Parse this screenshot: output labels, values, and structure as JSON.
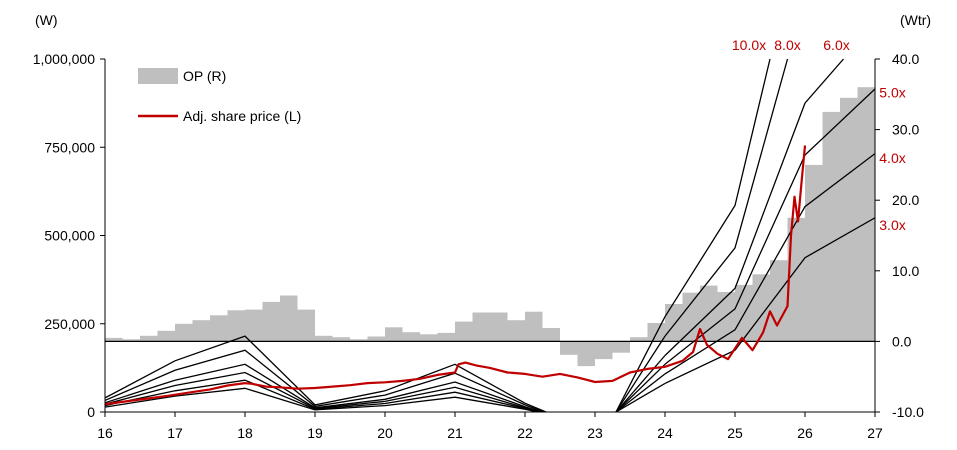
{
  "chart_data": {
    "type": "line",
    "left_unit": "(W)",
    "right_unit": "(Wtr)",
    "x_ticks": [
      "16",
      "17",
      "18",
      "19",
      "20",
      "21",
      "22",
      "23",
      "24",
      "25",
      "26",
      "27"
    ],
    "x_range": [
      16,
      27
    ],
    "left_ticks": [
      "0",
      "250,000",
      "500,000",
      "750,000",
      "1,000,000"
    ],
    "left_range": [
      0,
      1000000
    ],
    "right_ticks": [
      "-10.0",
      "0.0",
      "10.0",
      "20.0",
      "30.0",
      "40.0"
    ],
    "right_range": [
      -10,
      40
    ],
    "accent_color": "#c00000",
    "bar_color": "#bfbfbf",
    "legend": [
      {
        "label": "OP (R)",
        "kind": "bar"
      },
      {
        "label": "Adj. share price (L)",
        "kind": "line"
      }
    ],
    "op_quarterly": {
      "start": 16.0,
      "step": 0.25,
      "values": [
        0.5,
        0.3,
        0.8,
        1.5,
        2.5,
        3.0,
        3.7,
        4.4,
        4.5,
        5.6,
        6.5,
        4.5,
        0.8,
        0.6,
        0.3,
        0.7,
        2.0,
        1.3,
        1.0,
        1.2,
        2.8,
        4.1,
        4.1,
        3.0,
        4.2,
        1.9,
        -1.9,
        -3.5,
        -2.5,
        -1.6,
        0.6,
        2.6,
        5.3,
        6.9,
        7.9,
        7.0,
        8.0,
        9.5,
        11.5,
        17.5,
        25.0,
        32.5,
        34.5,
        36.0
      ]
    },
    "share_price": {
      "name": "Adj. share price (L)",
      "points": [
        [
          16.0,
          22000
        ],
        [
          16.3,
          30000
        ],
        [
          16.6,
          38000
        ],
        [
          16.9,
          46000
        ],
        [
          17.2,
          55000
        ],
        [
          17.5,
          64000
        ],
        [
          17.75,
          75000
        ],
        [
          18.0,
          82000
        ],
        [
          18.1,
          80000
        ],
        [
          18.3,
          72000
        ],
        [
          18.5,
          70000
        ],
        [
          18.75,
          66000
        ],
        [
          19.0,
          68000
        ],
        [
          19.25,
          72000
        ],
        [
          19.5,
          76000
        ],
        [
          19.75,
          82000
        ],
        [
          20.0,
          84000
        ],
        [
          20.25,
          88000
        ],
        [
          20.5,
          94000
        ],
        [
          20.75,
          105000
        ],
        [
          21.0,
          112000
        ],
        [
          21.05,
          135000
        ],
        [
          21.15,
          140000
        ],
        [
          21.3,
          132000
        ],
        [
          21.5,
          125000
        ],
        [
          21.75,
          112000
        ],
        [
          22.0,
          108000
        ],
        [
          22.25,
          100000
        ],
        [
          22.5,
          108000
        ],
        [
          22.75,
          98000
        ],
        [
          23.0,
          85000
        ],
        [
          23.25,
          88000
        ],
        [
          23.5,
          112000
        ],
        [
          23.75,
          122000
        ],
        [
          24.0,
          128000
        ],
        [
          24.25,
          145000
        ],
        [
          24.4,
          170000
        ],
        [
          24.5,
          235000
        ],
        [
          24.6,
          190000
        ],
        [
          24.75,
          165000
        ],
        [
          24.9,
          150000
        ],
        [
          25.0,
          180000
        ],
        [
          25.1,
          210000
        ],
        [
          25.25,
          175000
        ],
        [
          25.4,
          225000
        ],
        [
          25.5,
          285000
        ],
        [
          25.6,
          245000
        ],
        [
          25.75,
          300000
        ],
        [
          25.8,
          500000
        ],
        [
          25.85,
          610000
        ],
        [
          25.9,
          540000
        ],
        [
          25.95,
          650000
        ],
        [
          26.0,
          755000
        ]
      ]
    },
    "multiples": [
      {
        "label": "10.0x",
        "points": [
          [
            16.0,
            40000
          ],
          [
            17.0,
            145000
          ],
          [
            18.0,
            215000
          ],
          [
            19.0,
            20000
          ],
          [
            20.0,
            60000
          ],
          [
            21.0,
            135000
          ],
          [
            22.0,
            25000
          ],
          [
            24.0,
            270000
          ],
          [
            25.0,
            585000
          ],
          [
            25.5,
            1000000
          ]
        ]
      },
      {
        "label": "8.0x",
        "points": [
          [
            16.0,
            33000
          ],
          [
            17.0,
            118000
          ],
          [
            18.0,
            175000
          ],
          [
            19.0,
            16000
          ],
          [
            20.0,
            48000
          ],
          [
            21.0,
            110000
          ],
          [
            22.0,
            20000
          ],
          [
            24.0,
            215000
          ],
          [
            25.0,
            465000
          ],
          [
            25.75,
            1000000
          ]
        ]
      },
      {
        "label": "6.0x",
        "points": [
          [
            16.0,
            26000
          ],
          [
            17.0,
            90000
          ],
          [
            18.0,
            135000
          ],
          [
            19.0,
            12000
          ],
          [
            20.0,
            36000
          ],
          [
            21.0,
            85000
          ],
          [
            22.0,
            15000
          ],
          [
            24.0,
            160000
          ],
          [
            25.0,
            350000
          ],
          [
            26.0,
            875000
          ],
          [
            26.55,
            1000000
          ]
        ]
      },
      {
        "label": "5.0x",
        "points": [
          [
            16.0,
            22000
          ],
          [
            17.0,
            75000
          ],
          [
            18.0,
            112000
          ],
          [
            19.0,
            10000
          ],
          [
            20.0,
            30000
          ],
          [
            21.0,
            70000
          ],
          [
            22.0,
            12000
          ],
          [
            24.0,
            135000
          ],
          [
            25.0,
            292000
          ],
          [
            26.0,
            728000
          ],
          [
            27.0,
            915000
          ]
        ]
      },
      {
        "label": "4.0x",
        "points": [
          [
            16.0,
            18000
          ],
          [
            17.0,
            60000
          ],
          [
            18.0,
            90000
          ],
          [
            19.0,
            8000
          ],
          [
            20.0,
            24000
          ],
          [
            21.0,
            56000
          ],
          [
            22.0,
            10000
          ],
          [
            24.0,
            108000
          ],
          [
            25.0,
            233000
          ],
          [
            26.0,
            582000
          ],
          [
            27.0,
            732000
          ]
        ]
      },
      {
        "label": "3.0x",
        "points": [
          [
            16.0,
            14000
          ],
          [
            17.0,
            45000
          ],
          [
            18.0,
            67000
          ],
          [
            19.0,
            6000
          ],
          [
            20.0,
            18000
          ],
          [
            21.0,
            42000
          ],
          [
            22.0,
            8000
          ],
          [
            24.0,
            81000
          ],
          [
            25.0,
            175000
          ],
          [
            26.0,
            437000
          ],
          [
            27.0,
            550000
          ]
        ]
      }
    ],
    "multiple_fall_segments": [
      [
        [
          22.0,
          25000
        ],
        [
          22.3,
          0
        ]
      ],
      [
        [
          22.0,
          20000
        ],
        [
          22.27,
          0
        ]
      ],
      [
        [
          22.0,
          15000
        ],
        [
          22.24,
          0
        ]
      ],
      [
        [
          22.0,
          12000
        ],
        [
          22.22,
          0
        ]
      ],
      [
        [
          22.0,
          10000
        ],
        [
          22.2,
          0
        ]
      ],
      [
        [
          22.0,
          8000
        ],
        [
          22.18,
          0
        ]
      ]
    ],
    "multiple_rise_segments": [
      [
        [
          23.3,
          0
        ],
        [
          24.0,
          270000
        ]
      ],
      [
        [
          23.3,
          0
        ],
        [
          24.0,
          215000
        ]
      ],
      [
        [
          23.3,
          0
        ],
        [
          24.0,
          160000
        ]
      ],
      [
        [
          23.3,
          0
        ],
        [
          24.0,
          135000
        ]
      ],
      [
        [
          23.3,
          0
        ],
        [
          24.0,
          108000
        ]
      ],
      [
        [
          23.3,
          0
        ],
        [
          24.0,
          81000
        ]
      ]
    ],
    "multiple_label_positions": [
      {
        "label": "10.0x",
        "x": 25.2,
        "y": 1040000
      },
      {
        "label": "8.0x",
        "x": 25.75,
        "y": 1040000
      },
      {
        "label": "6.0x",
        "x": 26.45,
        "y": 1040000
      },
      {
        "label": "5.0x",
        "x": 27.25,
        "y": 905000
      },
      {
        "label": "4.0x",
        "x": 27.25,
        "y": 720000
      },
      {
        "label": "3.0x",
        "x": 27.25,
        "y": 530000
      }
    ]
  }
}
